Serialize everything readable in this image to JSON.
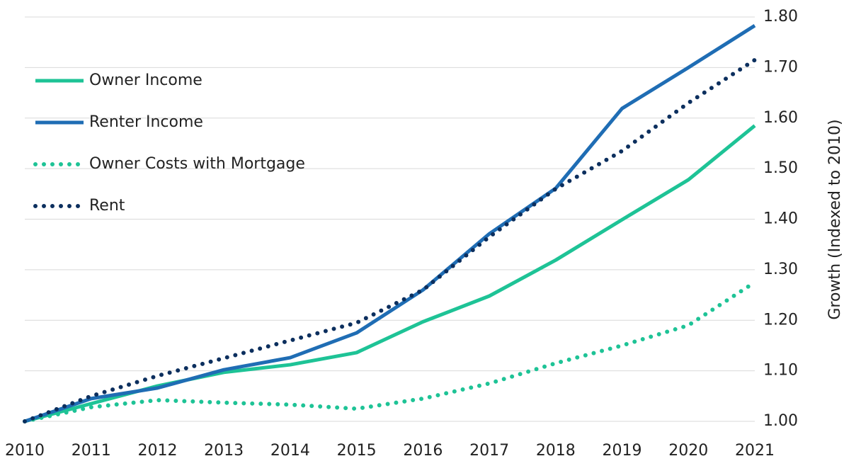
{
  "chart_data": {
    "type": "line",
    "y_axis_label": "Growth (Indexed to 2010)",
    "x": [
      2010,
      2011,
      2012,
      2013,
      2014,
      2015,
      2016,
      2017,
      2018,
      2019,
      2020,
      2021
    ],
    "xlim": [
      2010,
      2021
    ],
    "xticks": [
      2010,
      2011,
      2012,
      2013,
      2014,
      2015,
      2016,
      2017,
      2018,
      2019,
      2020,
      2021
    ],
    "ylim": [
      1.0,
      1.8
    ],
    "yticks": [
      {
        "value": 1.0,
        "label": "1.00"
      },
      {
        "value": 1.1,
        "label": "1.10"
      },
      {
        "value": 1.2,
        "label": "1.20"
      },
      {
        "value": 1.3,
        "label": "1.30"
      },
      {
        "value": 1.4,
        "label": "1.40"
      },
      {
        "value": 1.5,
        "label": "1.50"
      },
      {
        "value": 1.6,
        "label": "1.60"
      },
      {
        "value": 1.7,
        "label": "1.70"
      },
      {
        "value": 1.8,
        "label": "1.80"
      }
    ],
    "y_axis_side": "right",
    "grid": true,
    "legend": "upper left",
    "series": [
      {
        "name": "Owner Income",
        "color": "#1ec396",
        "style": "solid",
        "values": [
          1.0,
          1.035,
          1.07,
          1.097,
          1.112,
          1.136,
          1.197,
          1.248,
          1.319,
          1.399,
          1.478,
          1.585
        ]
      },
      {
        "name": "Renter Income",
        "color": "#1f6db4",
        "style": "solid",
        "values": [
          1.0,
          1.045,
          1.066,
          1.102,
          1.126,
          1.175,
          1.26,
          1.371,
          1.461,
          1.619,
          1.7,
          1.783
        ]
      },
      {
        "name": "Owner Costs with Mortgage",
        "color": "#1ec396",
        "style": "dotted",
        "values": [
          1.0,
          1.028,
          1.042,
          1.037,
          1.033,
          1.025,
          1.045,
          1.075,
          1.115,
          1.15,
          1.19,
          1.275
        ]
      },
      {
        "name": "Rent",
        "color": "#0c2f5e",
        "style": "dotted",
        "values": [
          1.0,
          1.05,
          1.09,
          1.125,
          1.16,
          1.195,
          1.26,
          1.365,
          1.46,
          1.535,
          1.63,
          1.715
        ]
      }
    ]
  }
}
